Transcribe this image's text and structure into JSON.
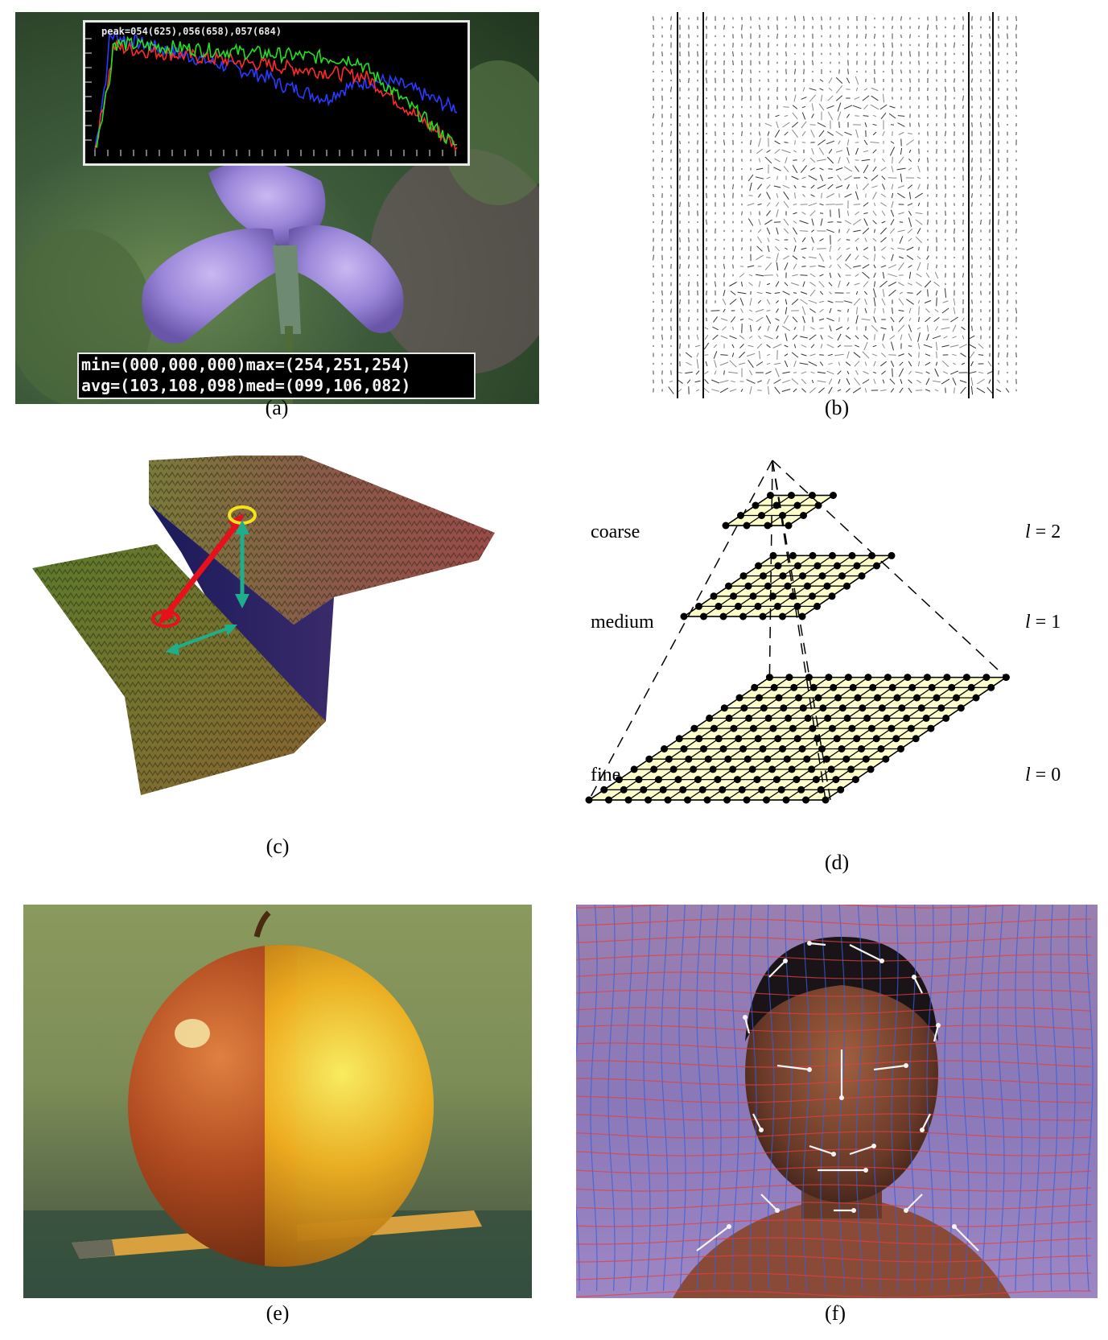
{
  "panels": {
    "a": {
      "caption": "(a)",
      "histogram_peak": "peak=054(625),056(658),057(684)",
      "stats_line1": "min=(000,000,000)max=(254,251,254)",
      "stats_line2": "avg=(103,108,098)med=(099,106,082)",
      "colors": {
        "red": "#ff2a2a",
        "green": "#22e022",
        "blue": "#2a3aff"
      }
    },
    "b": {
      "caption": "(b)"
    },
    "c": {
      "caption": "(c)",
      "colors": {
        "red_arrow": "#e8101a",
        "yellow_ellipse": "#f2e41a",
        "teal_arrow": "#1fae8c"
      }
    },
    "d": {
      "caption": "(d)",
      "levels": [
        {
          "name": "coarse",
          "l_label": "l",
          "l_value": "= 2"
        },
        {
          "name": "medium",
          "l_label": "l",
          "l_value": "= 1"
        },
        {
          "name": "fine",
          "l_label": "l",
          "l_value": "= 0"
        }
      ],
      "colors": {
        "grid_fill": "#ffffcc",
        "dot": "#000000"
      }
    },
    "e": {
      "caption": "(e)"
    },
    "f": {
      "caption": "(f)"
    }
  }
}
